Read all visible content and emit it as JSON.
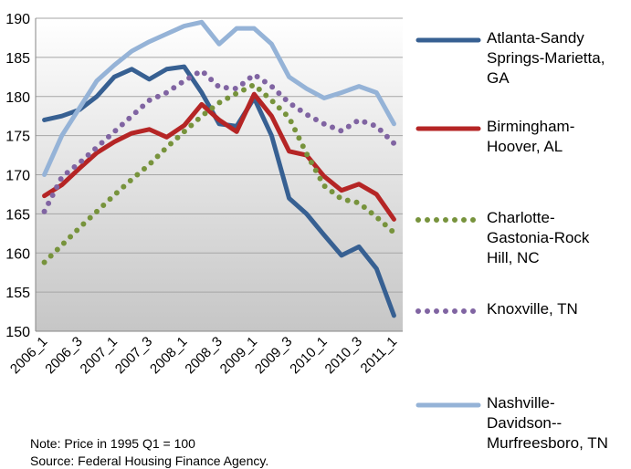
{
  "chart_data": {
    "type": "line",
    "categories": [
      "2006_1",
      null,
      "2006_3",
      null,
      "2007_1",
      null,
      "2007_3",
      null,
      "2008_1",
      null,
      "2008_3",
      null,
      "2009_1",
      null,
      "2009_3",
      null,
      "2010_1",
      null,
      "2010_3",
      null,
      "2011_1"
    ],
    "series": [
      {
        "name": "Atlanta-Sandy Springs-Marietta, GA",
        "color": "#376092",
        "style": "solid",
        "values": [
          177,
          177.5,
          178.3,
          180,
          182.5,
          183.5,
          182.2,
          183.5,
          183.8,
          180.5,
          176.5,
          176.2,
          179.8,
          175,
          167,
          165,
          162.3,
          159.7,
          160.8,
          158,
          152
        ]
      },
      {
        "name": "Birmingham-Hoover, AL",
        "color": "#b52525",
        "style": "solid",
        "values": [
          167.3,
          168.7,
          170.8,
          172.8,
          174.2,
          175.3,
          175.8,
          174.8,
          176.3,
          179,
          177,
          175.5,
          180.3,
          177.5,
          173,
          172.5,
          169.8,
          168,
          168.8,
          167.5,
          164.3
        ]
      },
      {
        "name": "Charlotte-Gastonia-Rock Hill, NC",
        "color": "#77933c",
        "style": "dotted",
        "values": [
          158.8,
          161,
          163.2,
          165.3,
          167.4,
          169.4,
          171.3,
          173.5,
          175.5,
          177.5,
          179.2,
          180.4,
          181.5,
          179.5,
          177.3,
          172.7,
          168.6,
          166.9,
          166.4,
          164.6,
          162.6
        ]
      },
      {
        "name": "Knoxville, TN",
        "color": "#8064a2",
        "style": "dotted",
        "values": [
          165.3,
          169.7,
          171.5,
          173.5,
          175.5,
          177.5,
          179.5,
          180.5,
          182,
          183.3,
          181.2,
          181,
          182.8,
          181.3,
          179.2,
          177.7,
          176.5,
          175.6,
          177,
          176.2,
          174
        ]
      },
      {
        "name": "Nashville-Davidson--Murfreesboro, TN",
        "color": "#95b3d7",
        "style": "solid",
        "values": [
          170,
          175,
          178.5,
          182,
          184,
          185.8,
          187,
          188,
          189,
          189.5,
          186.7,
          188.7,
          188.7,
          186.7,
          182.5,
          181,
          179.8,
          180.5,
          181.3,
          180.5,
          176.5
        ]
      }
    ],
    "ylim": [
      150,
      190
    ],
    "yticks": [
      150,
      155,
      160,
      165,
      170,
      175,
      180,
      185,
      190
    ],
    "grid": true,
    "notes": [
      "Note:  Price in 1995 Q1 = 100",
      "Source:  Federal Housing Finance Agency."
    ]
  }
}
